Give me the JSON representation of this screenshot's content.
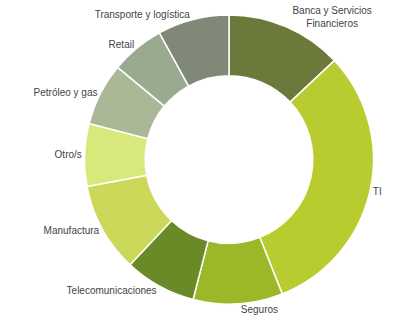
{
  "chart_data": {
    "type": "donut",
    "categories": [
      "Banca y Servicios\nFinancieros",
      "TI",
      "Seguros",
      "Telecomunicaciones",
      "Manufactura",
      "Otro/s",
      "Petróleo y gas",
      "Retail",
      "Transporte y logística"
    ],
    "values": [
      13,
      31,
      10,
      8,
      10,
      7,
      7,
      6,
      8
    ],
    "colors": [
      "#6b7a3a",
      "#b8cc30",
      "#9ab828",
      "#6a8a28",
      "#ccd85a",
      "#d8e87a",
      "#aab898",
      "#9aaa90",
      "#808878"
    ]
  }
}
